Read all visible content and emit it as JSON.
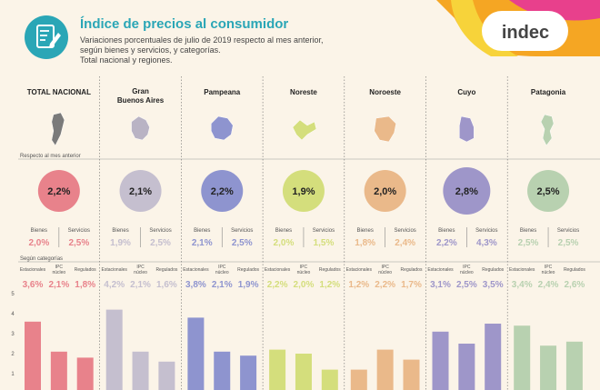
{
  "header": {
    "title": "Índice de precios al consumidor",
    "subtitle_lines": [
      "Variaciones porcentuales de julio de 2019 respecto al mes anterior,",
      "según bienes y servicios, y categorías.",
      "Total nacional y regiones."
    ],
    "logo_text": "indec",
    "icon": "document-edit-icon"
  },
  "labels": {
    "respecto": "Respecto al mes anterior",
    "segun": "Según categorías",
    "bienes": "Bienes",
    "servicios": "Servicios",
    "estacionales": "Estacionales",
    "ipc_nucleo_1": "IPC",
    "ipc_nucleo_2": "núcleo",
    "regulados": "Regulados"
  },
  "colors": {
    "teal": "#2aa6b6",
    "orange": "#f5a623",
    "pink": "#e8408c",
    "yellow": "#f7d33a",
    "background": "#fbf4e8"
  },
  "chart_data": {
    "type": "bar",
    "ylim": [
      0,
      5
    ],
    "y_ticks": [
      "1",
      "2",
      "3",
      "4",
      "5"
    ],
    "category_labels": [
      "Estacionales",
      "IPC núcleo",
      "Regulados"
    ],
    "regions": [
      {
        "name_lines": [
          "TOTAL NACIONAL"
        ],
        "total": "2,2%",
        "bienes": "2,0%",
        "servicios": "2,5%",
        "cat_labels": [
          "3,6%",
          "2,1%",
          "1,8%"
        ],
        "values": [
          3.6,
          2.1,
          1.8
        ],
        "color": "#e8828b",
        "map": "#7a7a7a"
      },
      {
        "name_lines": [
          "Gran",
          "Buenos Aires"
        ],
        "total": "2,1%",
        "bienes": "1,9%",
        "servicios": "2,5%",
        "cat_labels": [
          "4,2%",
          "2,1%",
          "1,6%"
        ],
        "values": [
          4.2,
          2.1,
          1.6
        ],
        "color": "#c5bfcf",
        "map": "#b9b3c4"
      },
      {
        "name_lines": [
          "Pampeana"
        ],
        "total": "2,2%",
        "bienes": "2,1%",
        "servicios": "2,5%",
        "cat_labels": [
          "3,8%",
          "2,1%",
          "1,9%"
        ],
        "values": [
          3.8,
          2.1,
          1.9
        ],
        "color": "#8e94cf",
        "map": "#8e94cf"
      },
      {
        "name_lines": [
          "Noreste"
        ],
        "total": "1,9%",
        "bienes": "2,0%",
        "servicios": "1,5%",
        "cat_labels": [
          "2,2%",
          "2,0%",
          "1,2%"
        ],
        "values": [
          2.2,
          2.0,
          1.2
        ],
        "color": "#d4de7c",
        "map": "#d4de7c"
      },
      {
        "name_lines": [
          "Noroeste"
        ],
        "total": "2,0%",
        "bienes": "1,8%",
        "servicios": "2,4%",
        "cat_labels": [
          "1,2%",
          "2,2%",
          "1,7%"
        ],
        "values": [
          1.2,
          2.2,
          1.7
        ],
        "color": "#eab98a",
        "map": "#eab98a"
      },
      {
        "name_lines": [
          "Cuyo"
        ],
        "total": "2,8%",
        "bienes": "2,2%",
        "servicios": "4,3%",
        "cat_labels": [
          "3,1%",
          "2,5%",
          "3,5%"
        ],
        "values": [
          3.1,
          2.5,
          3.5
        ],
        "color": "#9e96c9",
        "map": "#9e96c9"
      },
      {
        "name_lines": [
          "Patagonia"
        ],
        "total": "2,5%",
        "bienes": "2,5%",
        "servicios": "2,5%",
        "cat_labels": [
          "3,4%",
          "2,4%",
          "2,6%"
        ],
        "values": [
          3.4,
          2.4,
          2.6
        ],
        "color": "#b8d1b0",
        "map": "#b8d1b0"
      }
    ]
  }
}
